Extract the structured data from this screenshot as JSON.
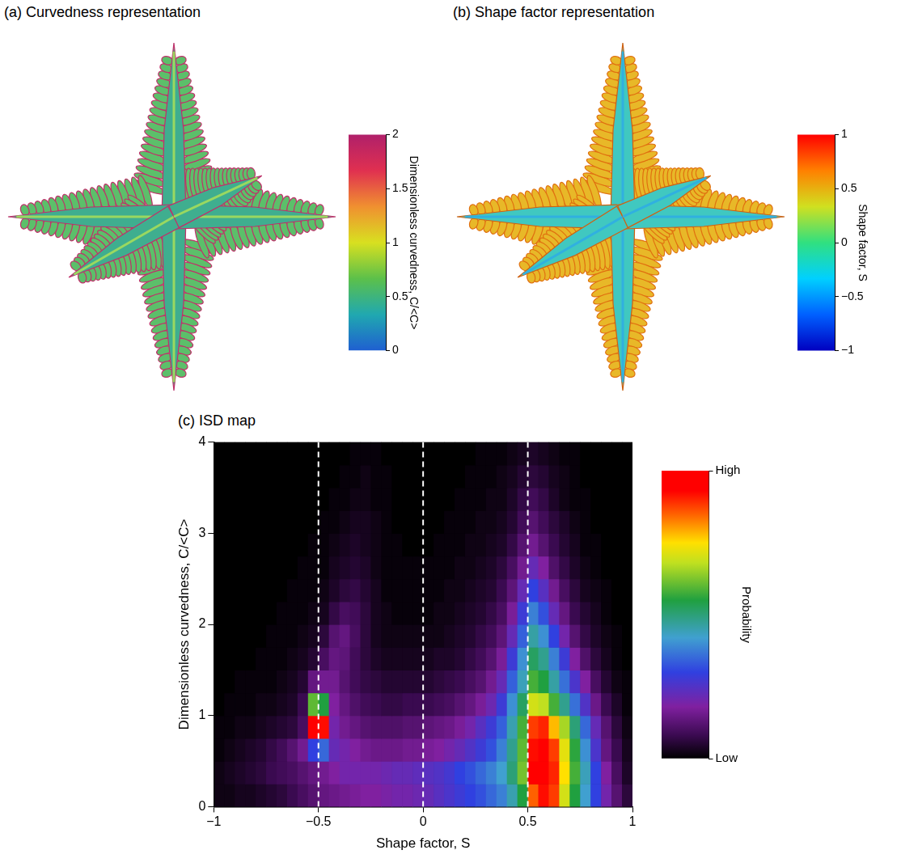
{
  "chart_data": [
    {
      "type": "render",
      "title": "(a) Curvedness representation",
      "colorbar": {
        "title": "Dimensionless curvedness, C/<C>",
        "range": [
          0,
          2
        ],
        "ticks": [
          0,
          0.5,
          1,
          1.5,
          2
        ]
      }
    },
    {
      "type": "render",
      "title": "(b) Shape factor representation",
      "colorbar": {
        "title": "Shape factor, S",
        "range": [
          -1,
          1
        ],
        "ticks": [
          {
            "value": -1,
            "label": "−1"
          },
          {
            "value": -0.5,
            "label": "−0.5"
          },
          0,
          0.5,
          1
        ]
      }
    },
    {
      "type": "heatmap",
      "title": "(c) ISD map",
      "xlabel": "Shape factor, S",
      "ylabel": "Dimensionless curvedness, C/<C>",
      "xlim": [
        -1,
        1
      ],
      "xticks": [
        {
          "value": -1,
          "label": "−1"
        },
        {
          "value": -0.5,
          "label": "−0.5"
        },
        0,
        0.5,
        1
      ],
      "ylim": [
        0,
        4
      ],
      "yticks": [
        0,
        1,
        2,
        3,
        4
      ],
      "vlines": [
        -0.5,
        0,
        0.5
      ],
      "x_bins": [
        -1,
        -0.95,
        -0.9,
        -0.85,
        -0.8,
        -0.75,
        -0.7,
        -0.65,
        -0.6,
        -0.55,
        -0.5,
        -0.45,
        -0.4,
        -0.35,
        -0.3,
        -0.25,
        -0.2,
        -0.15,
        -0.1,
        -0.05,
        0,
        0.05,
        0.1,
        0.15,
        0.2,
        0.25,
        0.3,
        0.35,
        0.4,
        0.45,
        0.5,
        0.55,
        0.6,
        0.65,
        0.7,
        0.75,
        0.8,
        0.85,
        0.9,
        0.95,
        1
      ],
      "y_bins": [
        0,
        0.25,
        0.5,
        0.75,
        1,
        1.25,
        1.5,
        1.75,
        2,
        2.25,
        2.5,
        2.75,
        3,
        3.25,
        3.5,
        3.75,
        4
      ],
      "cells": [
        [
          2,
          2,
          3,
          3,
          4,
          5,
          6,
          8,
          10,
          12,
          14,
          15,
          16,
          17,
          18,
          18,
          19,
          20,
          20,
          21,
          22,
          24,
          26,
          28,
          30,
          32,
          35,
          38,
          45,
          55,
          85,
          92,
          88,
          70,
          55,
          42,
          30,
          20,
          12,
          6
        ],
        [
          2,
          3,
          4,
          5,
          6,
          8,
          9,
          10,
          12,
          14,
          16,
          18,
          20,
          20,
          20,
          20,
          21,
          22,
          22,
          23,
          24,
          25,
          27,
          30,
          32,
          35,
          38,
          42,
          50,
          62,
          95,
          98,
          90,
          75,
          58,
          44,
          30,
          18,
          10,
          4
        ],
        [
          1,
          2,
          3,
          4,
          5,
          7,
          9,
          12,
          16,
          30,
          35,
          22,
          20,
          18,
          16,
          15,
          15,
          15,
          16,
          16,
          17,
          18,
          20,
          22,
          25,
          28,
          32,
          38,
          48,
          60,
          92,
          96,
          88,
          72,
          56,
          40,
          26,
          14,
          8,
          3
        ],
        [
          1,
          1,
          2,
          2,
          3,
          4,
          5,
          6,
          10,
          95,
          92,
          20,
          16,
          14,
          12,
          11,
          11,
          11,
          12,
          12,
          13,
          14,
          15,
          17,
          20,
          24,
          28,
          34,
          45,
          58,
          88,
          90,
          78,
          66,
          50,
          35,
          22,
          12,
          6,
          2
        ],
        [
          0,
          1,
          1,
          1,
          2,
          2,
          3,
          4,
          8,
          60,
          55,
          18,
          14,
          11,
          9,
          8,
          7,
          7,
          8,
          8,
          8,
          9,
          10,
          12,
          14,
          17,
          21,
          28,
          40,
          52,
          70,
          68,
          58,
          48,
          36,
          25,
          15,
          8,
          4,
          1
        ],
        [
          0,
          0,
          1,
          1,
          1,
          1,
          2,
          3,
          5,
          14,
          16,
          16,
          12,
          9,
          7,
          6,
          5,
          5,
          5,
          5,
          5,
          6,
          7,
          8,
          10,
          12,
          16,
          22,
          34,
          44,
          58,
          55,
          46,
          36,
          26,
          18,
          10,
          5,
          2,
          1
        ],
        [
          0,
          0,
          0,
          0,
          1,
          1,
          1,
          2,
          3,
          5,
          10,
          14,
          13,
          9,
          6,
          4,
          3,
          3,
          3,
          3,
          3,
          4,
          4,
          5,
          7,
          9,
          12,
          17,
          28,
          40,
          52,
          48,
          38,
          28,
          18,
          11,
          6,
          3,
          1,
          0
        ],
        [
          0,
          0,
          0,
          0,
          0,
          1,
          1,
          1,
          2,
          3,
          6,
          12,
          14,
          10,
          6,
          3,
          2,
          2,
          2,
          2,
          2,
          2,
          3,
          4,
          5,
          7,
          9,
          13,
          22,
          34,
          46,
          40,
          30,
          20,
          12,
          7,
          4,
          2,
          1,
          0
        ],
        [
          0,
          0,
          0,
          0,
          0,
          0,
          1,
          1,
          1,
          2,
          3,
          7,
          10,
          9,
          6,
          3,
          2,
          1,
          1,
          1,
          1,
          2,
          2,
          3,
          4,
          5,
          7,
          10,
          17,
          28,
          38,
          32,
          22,
          14,
          8,
          5,
          3,
          1,
          0,
          0
        ],
        [
          0,
          0,
          0,
          0,
          0,
          0,
          0,
          1,
          1,
          1,
          2,
          4,
          6,
          7,
          5,
          3,
          1,
          1,
          1,
          1,
          1,
          1,
          2,
          2,
          3,
          4,
          5,
          8,
          13,
          22,
          30,
          24,
          16,
          10,
          6,
          3,
          2,
          1,
          0,
          0
        ],
        [
          0,
          0,
          0,
          0,
          0,
          0,
          0,
          0,
          1,
          1,
          1,
          3,
          4,
          5,
          4,
          2,
          1,
          1,
          1,
          1,
          1,
          1,
          1,
          2,
          2,
          3,
          4,
          6,
          10,
          16,
          22,
          18,
          11,
          7,
          4,
          2,
          1,
          0,
          0,
          0
        ],
        [
          0,
          0,
          0,
          0,
          0,
          0,
          0,
          0,
          0,
          1,
          1,
          2,
          3,
          4,
          3,
          2,
          1,
          1,
          0,
          0,
          0,
          1,
          1,
          1,
          2,
          2,
          3,
          4,
          7,
          12,
          16,
          12,
          8,
          5,
          3,
          1,
          1,
          0,
          0,
          0
        ],
        [
          0,
          0,
          0,
          0,
          0,
          0,
          0,
          0,
          0,
          0,
          1,
          1,
          2,
          3,
          3,
          2,
          1,
          0,
          0,
          0,
          0,
          0,
          1,
          1,
          1,
          2,
          2,
          3,
          5,
          9,
          12,
          9,
          6,
          4,
          2,
          1,
          0,
          0,
          0,
          0
        ],
        [
          0,
          0,
          0,
          0,
          0,
          0,
          0,
          0,
          0,
          0,
          0,
          1,
          1,
          2,
          2,
          1,
          1,
          0,
          0,
          0,
          0,
          0,
          0,
          1,
          1,
          1,
          2,
          2,
          4,
          7,
          9,
          7,
          4,
          2,
          1,
          1,
          0,
          0,
          0,
          0
        ],
        [
          0,
          0,
          0,
          0,
          0,
          0,
          0,
          0,
          0,
          0,
          0,
          0,
          1,
          1,
          2,
          1,
          1,
          0,
          0,
          0,
          0,
          0,
          0,
          0,
          1,
          1,
          1,
          2,
          3,
          5,
          6,
          5,
          3,
          2,
          1,
          0,
          0,
          0,
          0,
          0
        ],
        [
          0,
          0,
          0,
          0,
          0,
          0,
          0,
          0,
          0,
          0,
          0,
          0,
          0,
          1,
          1,
          1,
          0,
          0,
          0,
          0,
          0,
          0,
          0,
          0,
          0,
          1,
          1,
          1,
          2,
          3,
          4,
          3,
          2,
          1,
          1,
          0,
          0,
          0,
          0,
          0
        ]
      ],
      "colorbar": {
        "title": "Probability",
        "range": [
          0,
          100
        ],
        "ticks": [
          {
            "value": 0,
            "label": "Low"
          },
          {
            "value": 100,
            "label": "High"
          }
        ]
      }
    }
  ]
}
